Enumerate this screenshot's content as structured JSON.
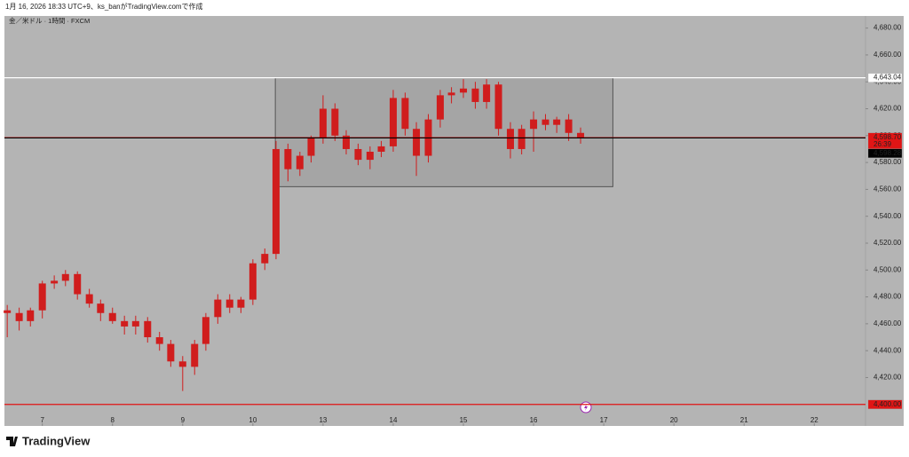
{
  "header": {
    "caption": "1月 16, 2026 18:33 UTC+9、ks_banがTradingView.comで作成"
  },
  "chart_data": {
    "type": "candlestick",
    "title": "金／米ドル · 1時間 · FXCM",
    "candle_color": "#d01d1d",
    "x": [
      -0.5,
      -0.33,
      -0.17,
      0,
      0.17,
      0.33,
      0.5,
      0.67,
      0.83,
      1,
      1.17,
      1.33,
      1.5,
      1.67,
      1.83,
      2,
      2.17,
      2.33,
      2.5,
      2.67,
      2.83,
      3,
      3.17,
      3.33,
      3.5,
      3.67,
      3.83,
      4,
      4.17,
      4.33,
      4.5,
      4.67,
      4.83,
      5,
      5.17,
      5.33,
      5.5,
      5.67,
      5.83,
      6,
      6.17,
      6.33,
      6.5,
      6.67,
      6.83,
      7,
      7.17,
      7.33,
      7.5,
      7.67
    ],
    "open": [
      4470,
      4468,
      4462,
      4470,
      4490,
      4492,
      4497,
      4482,
      4475,
      4468,
      4462,
      4458,
      4462,
      4450,
      4445,
      4432,
      4428,
      4445,
      4465,
      4478,
      4472,
      4478,
      4505,
      4512,
      4590,
      4575,
      4585,
      4598,
      4620,
      4600,
      4590,
      4582,
      4588,
      4592,
      4628,
      4605,
      4585,
      4612,
      4630,
      4632,
      4635,
      4625,
      4638,
      4605,
      4590,
      4605,
      4612,
      4608,
      4612,
      4602
    ],
    "high": [
      4474,
      4472,
      4472,
      4492,
      4496,
      4500,
      4499,
      4486,
      4478,
      4472,
      4466,
      4466,
      4465,
      4454,
      4448,
      4436,
      4448,
      4468,
      4482,
      4482,
      4480,
      4508,
      4516,
      4596,
      4594,
      4588,
      4600,
      4630,
      4624,
      4604,
      4594,
      4592,
      4596,
      4634,
      4632,
      4610,
      4616,
      4634,
      4636,
      4642,
      4640,
      4642,
      4640,
      4610,
      4608,
      4618,
      4616,
      4614,
      4616,
      4606
    ],
    "low": [
      4450,
      4455,
      4458,
      4464,
      4486,
      4488,
      4478,
      4472,
      4462,
      4460,
      4452,
      4452,
      4446,
      4440,
      4428,
      4410,
      4422,
      4440,
      4460,
      4468,
      4468,
      4474,
      4500,
      4508,
      4566,
      4570,
      4580,
      4594,
      4596,
      4586,
      4578,
      4575,
      4584,
      4588,
      4600,
      4570,
      4580,
      4606,
      4624,
      4628,
      4620,
      4620,
      4600,
      4583,
      4586,
      4588,
      4604,
      4602,
      4596,
      4594
    ],
    "close": [
      4468,
      4462,
      4470,
      4490,
      4492,
      4497,
      4482,
      4475,
      4468,
      4462,
      4458,
      4462,
      4450,
      4445,
      4432,
      4428,
      4445,
      4465,
      4478,
      4472,
      4478,
      4505,
      4512,
      4590,
      4575,
      4585,
      4598,
      4620,
      4600,
      4590,
      4582,
      4588,
      4592,
      4628,
      4605,
      4585,
      4612,
      4630,
      4632,
      4635,
      4625,
      4638,
      4605,
      4590,
      4605,
      4612,
      4608,
      4612,
      4602,
      4598.7
    ],
    "xlim": [
      -0.54,
      11.73
    ],
    "xticks": [
      {
        "value": 0,
        "label": "7"
      },
      {
        "value": 1,
        "label": "8"
      },
      {
        "value": 2,
        "label": "9"
      },
      {
        "value": 3,
        "label": "10"
      },
      {
        "value": 4,
        "label": "13"
      },
      {
        "value": 5,
        "label": "14"
      },
      {
        "value": 6,
        "label": "15"
      },
      {
        "value": 7,
        "label": "16"
      },
      {
        "value": 8,
        "label": "17"
      },
      {
        "value": 9,
        "label": "20"
      },
      {
        "value": 10,
        "label": "21"
      },
      {
        "value": 11,
        "label": "22"
      }
    ],
    "ylim": [
      4384,
      4689
    ],
    "yticks": [
      {
        "value": 4420,
        "label": "4,420.00"
      },
      {
        "value": 4440,
        "label": "4,440.00"
      },
      {
        "value": 4460,
        "label": "4,460.00"
      },
      {
        "value": 4480,
        "label": "4,480.00"
      },
      {
        "value": 4500,
        "label": "4,500.00"
      },
      {
        "value": 4520,
        "label": "4,520.00"
      },
      {
        "value": 4540,
        "label": "4,540.00"
      },
      {
        "value": 4560,
        "label": "4,560.00"
      },
      {
        "value": 4580,
        "label": "4,580.00"
      },
      {
        "value": 4600,
        "label": "4,600.00"
      },
      {
        "value": 4620,
        "label": "4,620.00"
      },
      {
        "value": 4640,
        "label": "4,640.00"
      },
      {
        "value": 4660,
        "label": "4,660.00"
      },
      {
        "value": 4680,
        "label": "4,680.00"
      }
    ],
    "levels": [
      {
        "value": 4643.04,
        "label": "4,643.04",
        "color": "#ffffff",
        "text_color": "#000000"
      },
      {
        "value": 4598.7,
        "label": "4,598.70",
        "color": "#e01515",
        "text_color": "#ffffff",
        "countdown": "26:39"
      },
      {
        "value": 4598.28,
        "label": "4,598.28",
        "color": "#000000",
        "text_color": "#ffffff"
      },
      {
        "value": 4400,
        "label": "4,400.00",
        "color": "#e01515",
        "text_color": "#ffffff"
      }
    ],
    "box": {
      "x": [
        3.32,
        8.13
      ],
      "y": [
        4562,
        4643
      ]
    }
  },
  "footer": {
    "logo": "TradingView"
  }
}
